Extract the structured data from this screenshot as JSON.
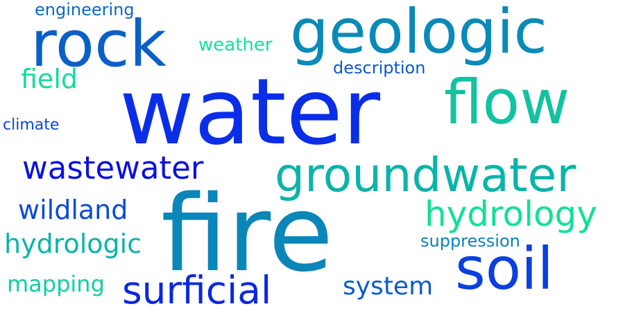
{
  "words": [
    {
      "text": "water",
      "color": "#0a2ee8"
    },
    {
      "text": "fire",
      "color": "#0a86b8"
    },
    {
      "text": "geologic",
      "color": "#0a8ab8"
    },
    {
      "text": "rock",
      "color": "#0a5fc8"
    },
    {
      "text": "flow",
      "color": "#12c2a0"
    },
    {
      "text": "groundwater",
      "color": "#0ab4a8"
    },
    {
      "text": "soil",
      "color": "#0a3fe0"
    },
    {
      "text": "hydrology",
      "color": "#12e096"
    },
    {
      "text": "wastewater",
      "color": "#0a10e0"
    },
    {
      "text": "surficial",
      "color": "#0a28e0"
    },
    {
      "text": "wildland",
      "color": "#0a4ad8"
    },
    {
      "text": "hydrologic",
      "color": "#0ab4a8"
    },
    {
      "text": "mapping",
      "color": "#10d0a0"
    },
    {
      "text": "system",
      "color": "#0a5ad0"
    },
    {
      "text": "field",
      "color": "#12dc9c"
    },
    {
      "text": "weather",
      "color": "#12e0a0"
    },
    {
      "text": "description",
      "color": "#0a58cc"
    },
    {
      "text": "engineering",
      "color": "#0a68c4"
    },
    {
      "text": "climate",
      "color": "#0a48d8"
    },
    {
      "text": "suppression",
      "color": "#0a80bc"
    }
  ]
}
